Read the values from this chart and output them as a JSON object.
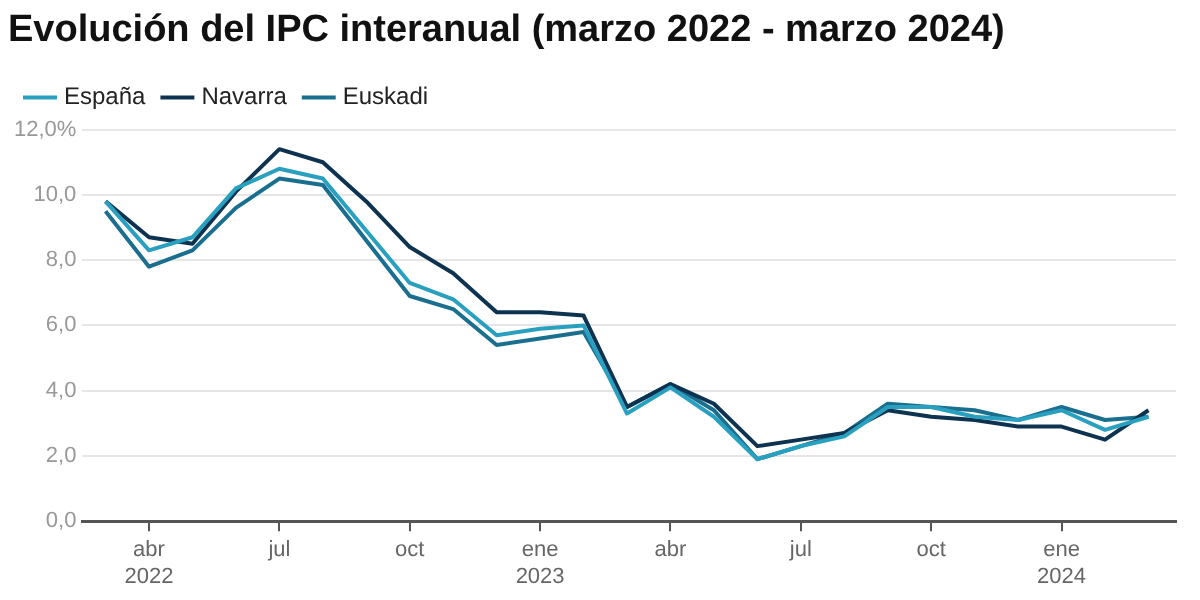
{
  "chart_data": {
    "type": "line",
    "title": "Evolución del IPC interanual (marzo 2022 - marzo 2024)",
    "x": [
      "2022-03",
      "2022-04",
      "2022-05",
      "2022-06",
      "2022-07",
      "2022-08",
      "2022-09",
      "2022-10",
      "2022-11",
      "2022-12",
      "2023-01",
      "2023-02",
      "2023-03",
      "2023-04",
      "2023-05",
      "2023-06",
      "2023-07",
      "2023-08",
      "2023-09",
      "2023-10",
      "2023-11",
      "2023-12",
      "2024-01",
      "2024-02",
      "2024-03"
    ],
    "series": [
      {
        "name": "España",
        "color": "#2aa0c0",
        "values": [
          9.8,
          8.3,
          8.7,
          10.2,
          10.8,
          10.5,
          8.9,
          7.3,
          6.8,
          5.7,
          5.9,
          6.0,
          3.3,
          4.1,
          3.2,
          1.9,
          2.3,
          2.6,
          3.5,
          3.5,
          3.2,
          3.1,
          3.4,
          2.8,
          3.2
        ]
      },
      {
        "name": "Navarra",
        "color": "#0d3350",
        "values": [
          9.8,
          8.7,
          8.5,
          10.1,
          11.4,
          11.0,
          9.8,
          8.4,
          7.6,
          6.4,
          6.4,
          6.3,
          3.5,
          4.2,
          3.6,
          2.3,
          2.5,
          2.7,
          3.4,
          3.2,
          3.1,
          2.9,
          2.9,
          2.5,
          3.4
        ]
      },
      {
        "name": "Euskadi",
        "color": "#1a6f8f",
        "values": [
          9.5,
          7.8,
          8.3,
          9.6,
          10.5,
          10.3,
          8.6,
          6.9,
          6.5,
          5.4,
          5.6,
          5.8,
          3.5,
          4.2,
          3.4,
          1.9,
          2.3,
          2.7,
          3.6,
          3.5,
          3.4,
          3.1,
          3.5,
          3.1,
          3.2
        ]
      }
    ],
    "xlim": [
      "2022-02-15",
      "2024-03-20"
    ],
    "xticks": [
      {
        "value": "2022-04",
        "label": "abr 2022"
      },
      {
        "value": "2022-07",
        "label": "jul"
      },
      {
        "value": "2022-10",
        "label": "oct"
      },
      {
        "value": "2023-01",
        "label": "ene 2023"
      },
      {
        "value": "2023-04",
        "label": "abr"
      },
      {
        "value": "2023-07",
        "label": "jul"
      },
      {
        "value": "2023-10",
        "label": "oct"
      },
      {
        "value": "2024-01",
        "label": "ene 2024"
      }
    ],
    "ylim": [
      0,
      12
    ],
    "yticks": [
      {
        "value": 0,
        "label": "0,0"
      },
      {
        "value": 2,
        "label": "2,0"
      },
      {
        "value": 4,
        "label": "4,0"
      },
      {
        "value": 6,
        "label": "6,0"
      },
      {
        "value": 8,
        "label": "8,0"
      },
      {
        "value": 10,
        "label": "10,0"
      },
      {
        "value": 12,
        "label": "12,0%"
      }
    ],
    "grid": "y",
    "legend": "top left",
    "marker": "none",
    "line_style": "solid"
  }
}
